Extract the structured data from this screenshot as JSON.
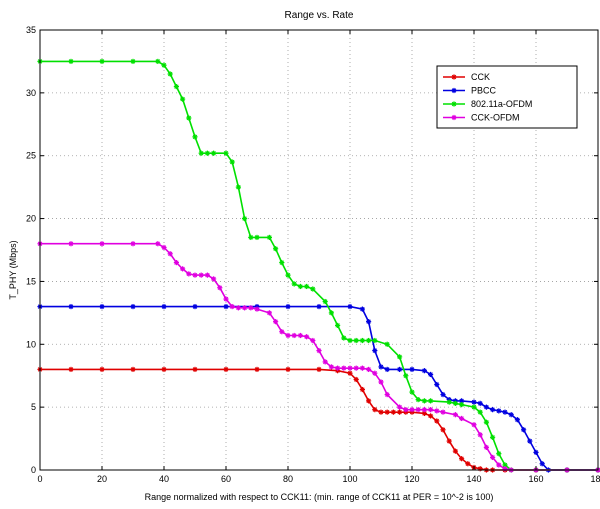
{
  "chart_data": {
    "type": "line",
    "title": "Range vs. Rate",
    "xlabel": "Range normalized with respect to CCK11: (min. range of CCK11 at PER = 10^-2 is 100)",
    "ylabel": "T_PHY (Mbps)",
    "xlim": [
      0,
      180
    ],
    "ylim": [
      0,
      35
    ],
    "xticks": [
      0,
      20,
      40,
      60,
      80,
      100,
      120,
      140,
      160,
      180
    ],
    "yticks": [
      0,
      5,
      10,
      15,
      20,
      25,
      30,
      35
    ],
    "xtick_labels": [
      "0",
      "20",
      "40",
      "60",
      "80",
      "100",
      "120",
      "140",
      "160",
      "180"
    ],
    "ytick_labels": [
      "0",
      "5",
      "10",
      "15",
      "20",
      "25",
      "30",
      "35"
    ],
    "grid": true,
    "legend_position": "top-right",
    "series": [
      {
        "name": "CCK",
        "color": "#e00000",
        "marker": "star",
        "x": [
          0,
          10,
          20,
          30,
          40,
          50,
          60,
          70,
          80,
          90,
          96,
          100,
          102,
          104,
          106,
          108,
          110,
          112,
          114,
          116,
          118,
          120,
          124,
          126,
          128,
          130,
          132,
          134,
          136,
          138,
          140,
          142,
          144,
          146,
          150,
          160,
          170,
          180
        ],
        "values": [
          8,
          8,
          8,
          8,
          8,
          8,
          8,
          8,
          8,
          8,
          7.9,
          7.7,
          7.2,
          6.4,
          5.5,
          4.8,
          4.6,
          4.6,
          4.6,
          4.6,
          4.6,
          4.6,
          4.5,
          4.3,
          3.9,
          3.2,
          2.3,
          1.5,
          0.9,
          0.5,
          0.2,
          0.1,
          0,
          0,
          0,
          0,
          0,
          0
        ]
      },
      {
        "name": "PBCC",
        "color": "#0000e0",
        "marker": "star",
        "x": [
          0,
          10,
          20,
          30,
          40,
          50,
          60,
          70,
          80,
          90,
          100,
          104,
          106,
          108,
          110,
          112,
          116,
          120,
          124,
          126,
          128,
          130,
          132,
          134,
          136,
          140,
          142,
          144,
          146,
          148,
          150,
          152,
          154,
          156,
          158,
          160,
          162,
          164,
          170,
          180
        ],
        "values": [
          13,
          13,
          13,
          13,
          13,
          13,
          13,
          13,
          13,
          13,
          13,
          12.8,
          11.8,
          9.5,
          8.2,
          8,
          8,
          8,
          7.9,
          7.6,
          6.8,
          6.0,
          5.6,
          5.5,
          5.5,
          5.4,
          5.3,
          5.0,
          4.8,
          4.7,
          4.6,
          4.4,
          4.0,
          3.2,
          2.3,
          1.4,
          0.5,
          0,
          0,
          0
        ]
      },
      {
        "name": "802.11a-OFDM",
        "color": "#00e000",
        "marker": "star",
        "x": [
          0,
          10,
          20,
          30,
          38,
          40,
          42,
          44,
          46,
          48,
          50,
          52,
          54,
          56,
          60,
          62,
          64,
          66,
          68,
          70,
          74,
          76,
          78,
          80,
          82,
          84,
          86,
          88,
          92,
          94,
          96,
          98,
          100,
          102,
          104,
          106,
          108,
          112,
          116,
          118,
          120,
          122,
          124,
          126,
          132,
          134,
          136,
          140,
          142,
          144,
          146,
          148,
          150,
          152,
          160,
          170,
          180
        ],
        "values": [
          32.5,
          32.5,
          32.5,
          32.5,
          32.5,
          32.2,
          31.5,
          30.5,
          29.5,
          28.0,
          26.5,
          25.2,
          25.2,
          25.2,
          25.2,
          24.5,
          22.5,
          20.0,
          18.5,
          18.5,
          18.5,
          17.6,
          16.5,
          15.5,
          14.8,
          14.6,
          14.6,
          14.4,
          13.4,
          12.5,
          11.5,
          10.5,
          10.3,
          10.3,
          10.3,
          10.3,
          10.3,
          10.0,
          9.0,
          7.5,
          6.2,
          5.6,
          5.5,
          5.5,
          5.4,
          5.3,
          5.2,
          5.0,
          4.6,
          3.8,
          2.6,
          1.3,
          0.4,
          0,
          0,
          0,
          0
        ]
      },
      {
        "name": "CCK-OFDM",
        "color": "#e000e0",
        "marker": "star",
        "x": [
          0,
          10,
          20,
          30,
          38,
          40,
          42,
          44,
          46,
          48,
          50,
          52,
          54,
          56,
          58,
          60,
          62,
          64,
          66,
          68,
          70,
          74,
          76,
          78,
          80,
          82,
          84,
          86,
          88,
          90,
          92,
          94,
          96,
          98,
          100,
          102,
          104,
          106,
          108,
          110,
          112,
          116,
          118,
          120,
          122,
          124,
          126,
          128,
          130,
          134,
          136,
          140,
          142,
          144,
          146,
          148,
          150,
          152,
          160,
          170,
          180
        ],
        "values": [
          18,
          18,
          18,
          18,
          18,
          17.7,
          17.2,
          16.5,
          16,
          15.6,
          15.5,
          15.5,
          15.5,
          15.2,
          14.5,
          13.6,
          13.0,
          12.9,
          12.9,
          12.9,
          12.8,
          12.5,
          11.8,
          11.0,
          10.7,
          10.7,
          10.7,
          10.6,
          10.3,
          9.5,
          8.6,
          8.2,
          8.1,
          8.1,
          8.1,
          8.1,
          8.1,
          8.0,
          7.7,
          7.0,
          6.0,
          5.0,
          4.8,
          4.8,
          4.8,
          4.8,
          4.8,
          4.7,
          4.6,
          4.4,
          4.1,
          3.6,
          2.8,
          1.8,
          1.0,
          0.4,
          0.1,
          0,
          0,
          0,
          0
        ]
      }
    ]
  }
}
